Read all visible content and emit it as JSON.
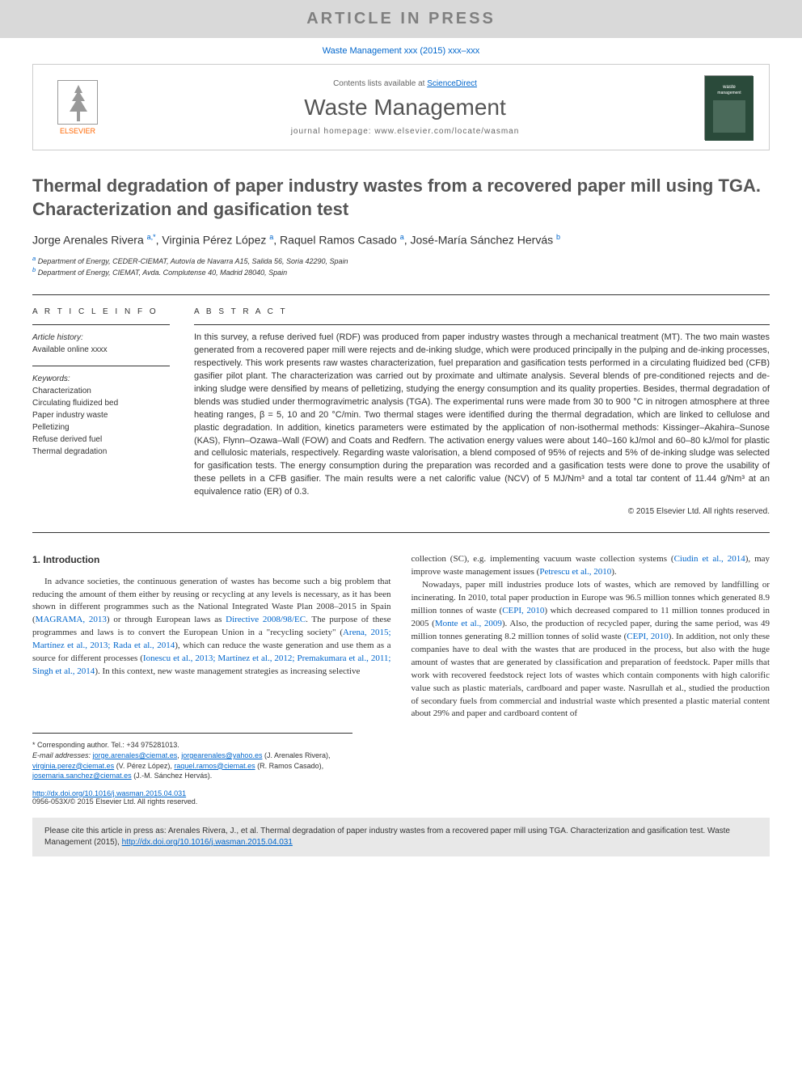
{
  "banner": {
    "text": "ARTICLE IN PRESS"
  },
  "citation_top": "Waste Management xxx (2015) xxx–xxx",
  "header": {
    "contents_prefix": "Contents lists available at ",
    "contents_link": "ScienceDirect",
    "journal": "Waste Management",
    "homepage_prefix": "journal homepage: ",
    "homepage_url": "www.elsevier.com/locate/wasman",
    "publisher": "ELSEVIER"
  },
  "article": {
    "title": "Thermal degradation of paper industry wastes from a recovered paper mill using TGA. Characterization and gasification test",
    "authors_html": "Jorge Arenales Rivera <sup>a,*</sup>, Virginia Pérez López <sup>a</sup>, Raquel Ramos Casado <sup>a</sup>, José-María Sánchez Hervás <sup>b</sup>",
    "affiliations": [
      {
        "sup": "a",
        "text": "Department of Energy, CEDER-CIEMAT, Autovía de Navarra A15, Salida 56, Soria 42290, Spain"
      },
      {
        "sup": "b",
        "text": "Department of Energy, CIEMAT, Avda. Complutense 40, Madrid 28040, Spain"
      }
    ]
  },
  "info": {
    "header": "A R T I C L E   I N F O",
    "history_label": "Article history:",
    "history_line": "Available online xxxx",
    "keywords_label": "Keywords:",
    "keywords": [
      "Characterization",
      "Circulating fluidized bed",
      "Paper industry waste",
      "Pelletizing",
      "Refuse derived fuel",
      "Thermal degradation"
    ]
  },
  "abstract": {
    "header": "A B S T R A C T",
    "text": "In this survey, a refuse derived fuel (RDF) was produced from paper industry wastes through a mechanical treatment (MT). The two main wastes generated from a recovered paper mill were rejects and de-inking sludge, which were produced principally in the pulping and de-inking processes, respectively. This work presents raw wastes characterization, fuel preparation and gasification tests performed in a circulating fluidized bed (CFB) gasifier pilot plant. The characterization was carried out by proximate and ultimate analysis. Several blends of pre-conditioned rejects and de-inking sludge were densified by means of pelletizing, studying the energy consumption and its quality properties. Besides, thermal degradation of blends was studied under thermogravimetric analysis (TGA). The experimental runs were made from 30 to 900 °C in nitrogen atmosphere at three heating ranges, β = 5, 10 and 20 °C/min. Two thermal stages were identified during the thermal degradation, which are linked to cellulose and plastic degradation. In addition, kinetics parameters were estimated by the application of non-isothermal methods: Kissinger–Akahira–Sunose (KAS), Flynn–Ozawa–Wall (FOW) and Coats and Redfern. The activation energy values were about 140–160 kJ/mol and 60–80 kJ/mol for plastic and cellulosic materials, respectively. Regarding waste valorisation, a blend composed of 95% of rejects and 5% of de-inking sludge was selected for gasification tests. The energy consumption during the preparation was recorded and a gasification tests were done to prove the usability of these pellets in a CFB gasifier. The main results were a net calorific value (NCV) of 5 MJ/Nm³ and a total tar content of 11.44 g/Nm³ at an equivalence ratio (ER) of 0.3.",
    "copyright": "© 2015 Elsevier Ltd. All rights reserved."
  },
  "body": {
    "section_number": "1.",
    "section_title": "Introduction",
    "col1_html": "In advance societies, the continuous generation of wastes has become such a big problem that reducing the amount of them either by reusing or recycling at any levels is necessary, as it has been shown in different programmes such as the National Integrated Waste Plan 2008–2015 in Spain (<a href='#'>MAGRAMA, 2013</a>) or through European laws as <a href='#'>Directive 2008/98/EC</a>. The purpose of these programmes and laws is to convert the European Union in a \"recycling society\" (<a href='#'>Arena, 2015; Martínez et al., 2013; Rada et al., 2014</a>), which can reduce the waste generation and use them as a source for different processes (<a href='#'>Ionescu et al., 2013; Martínez et al., 2012; Premakumara et al., 2011; Singh et al., 2014</a>). In this context, new waste management strategies as increasing selective",
    "col2_html": "collection (SC), e.g. implementing vacuum waste collection systems (<a href='#'>Ciudin et al., 2014</a>), may improve waste management issues (<a href='#'>Petrescu et al., 2010</a>).<br>&nbsp;&nbsp;&nbsp;Nowadays, paper mill industries produce lots of wastes, which are removed by landfilling or incinerating. In 2010, total paper production in Europe was 96.5 million tonnes which generated 8.9 million tonnes of waste (<a href='#'>CEPI, 2010</a>) which decreased compared to 11 million tonnes produced in 2005 (<a href='#'>Monte et al., 2009</a>). Also, the production of recycled paper, during the same period, was 49 million tonnes generating 8.2 million tonnes of solid waste (<a href='#'>CEPI, 2010</a>). In addition, not only these companies have to deal with the wastes that are produced in the process, but also with the huge amount of wastes that are generated by classification and preparation of feedstock. Paper mills that work with recovered feedstock reject lots of wastes which contain components with high calorific value such as plastic materials, cardboard and paper waste. Nasrullah et al., studied the production of secondary fuels from commercial and industrial waste which presented a plastic material content about 29% and paper and cardboard content of"
  },
  "footnotes": {
    "corr": "* Corresponding author. Tel.: +34 975281013.",
    "email_label": "E-mail addresses:",
    "emails_html": "<a href='#'>jorge.arenales@ciemat.es</a>, <a href='#'>jorgearenales@yahoo.es</a> (J. Arenales Rivera), <a href='#'>virginia.perez@ciemat.es</a> (V. Pérez López), <a href='#'>raquel.ramos@ciemat.es</a> (R. Ramos Casado), <a href='#'>josemaria.sanchez@ciemat.es</a> (J.-M. Sánchez Hervás)."
  },
  "doi": {
    "url": "http://dx.doi.org/10.1016/j.wasman.2015.04.031",
    "issn_line": "0956-053X/© 2015 Elsevier Ltd. All rights reserved."
  },
  "citation_box": {
    "prefix": "Please cite this article in press as: Arenales Rivera, J., et al. Thermal degradation of paper industry wastes from a recovered paper mill using TGA. Characterization and gasification test. Waste Management (2015), ",
    "url": "http://dx.doi.org/10.1016/j.wasman.2015.04.031"
  },
  "colors": {
    "link": "#0066cc",
    "banner_bg": "#d9d9d9",
    "banner_text": "#808080",
    "elsevier_orange": "#ff6600",
    "citation_bg": "#e8e8e8"
  }
}
